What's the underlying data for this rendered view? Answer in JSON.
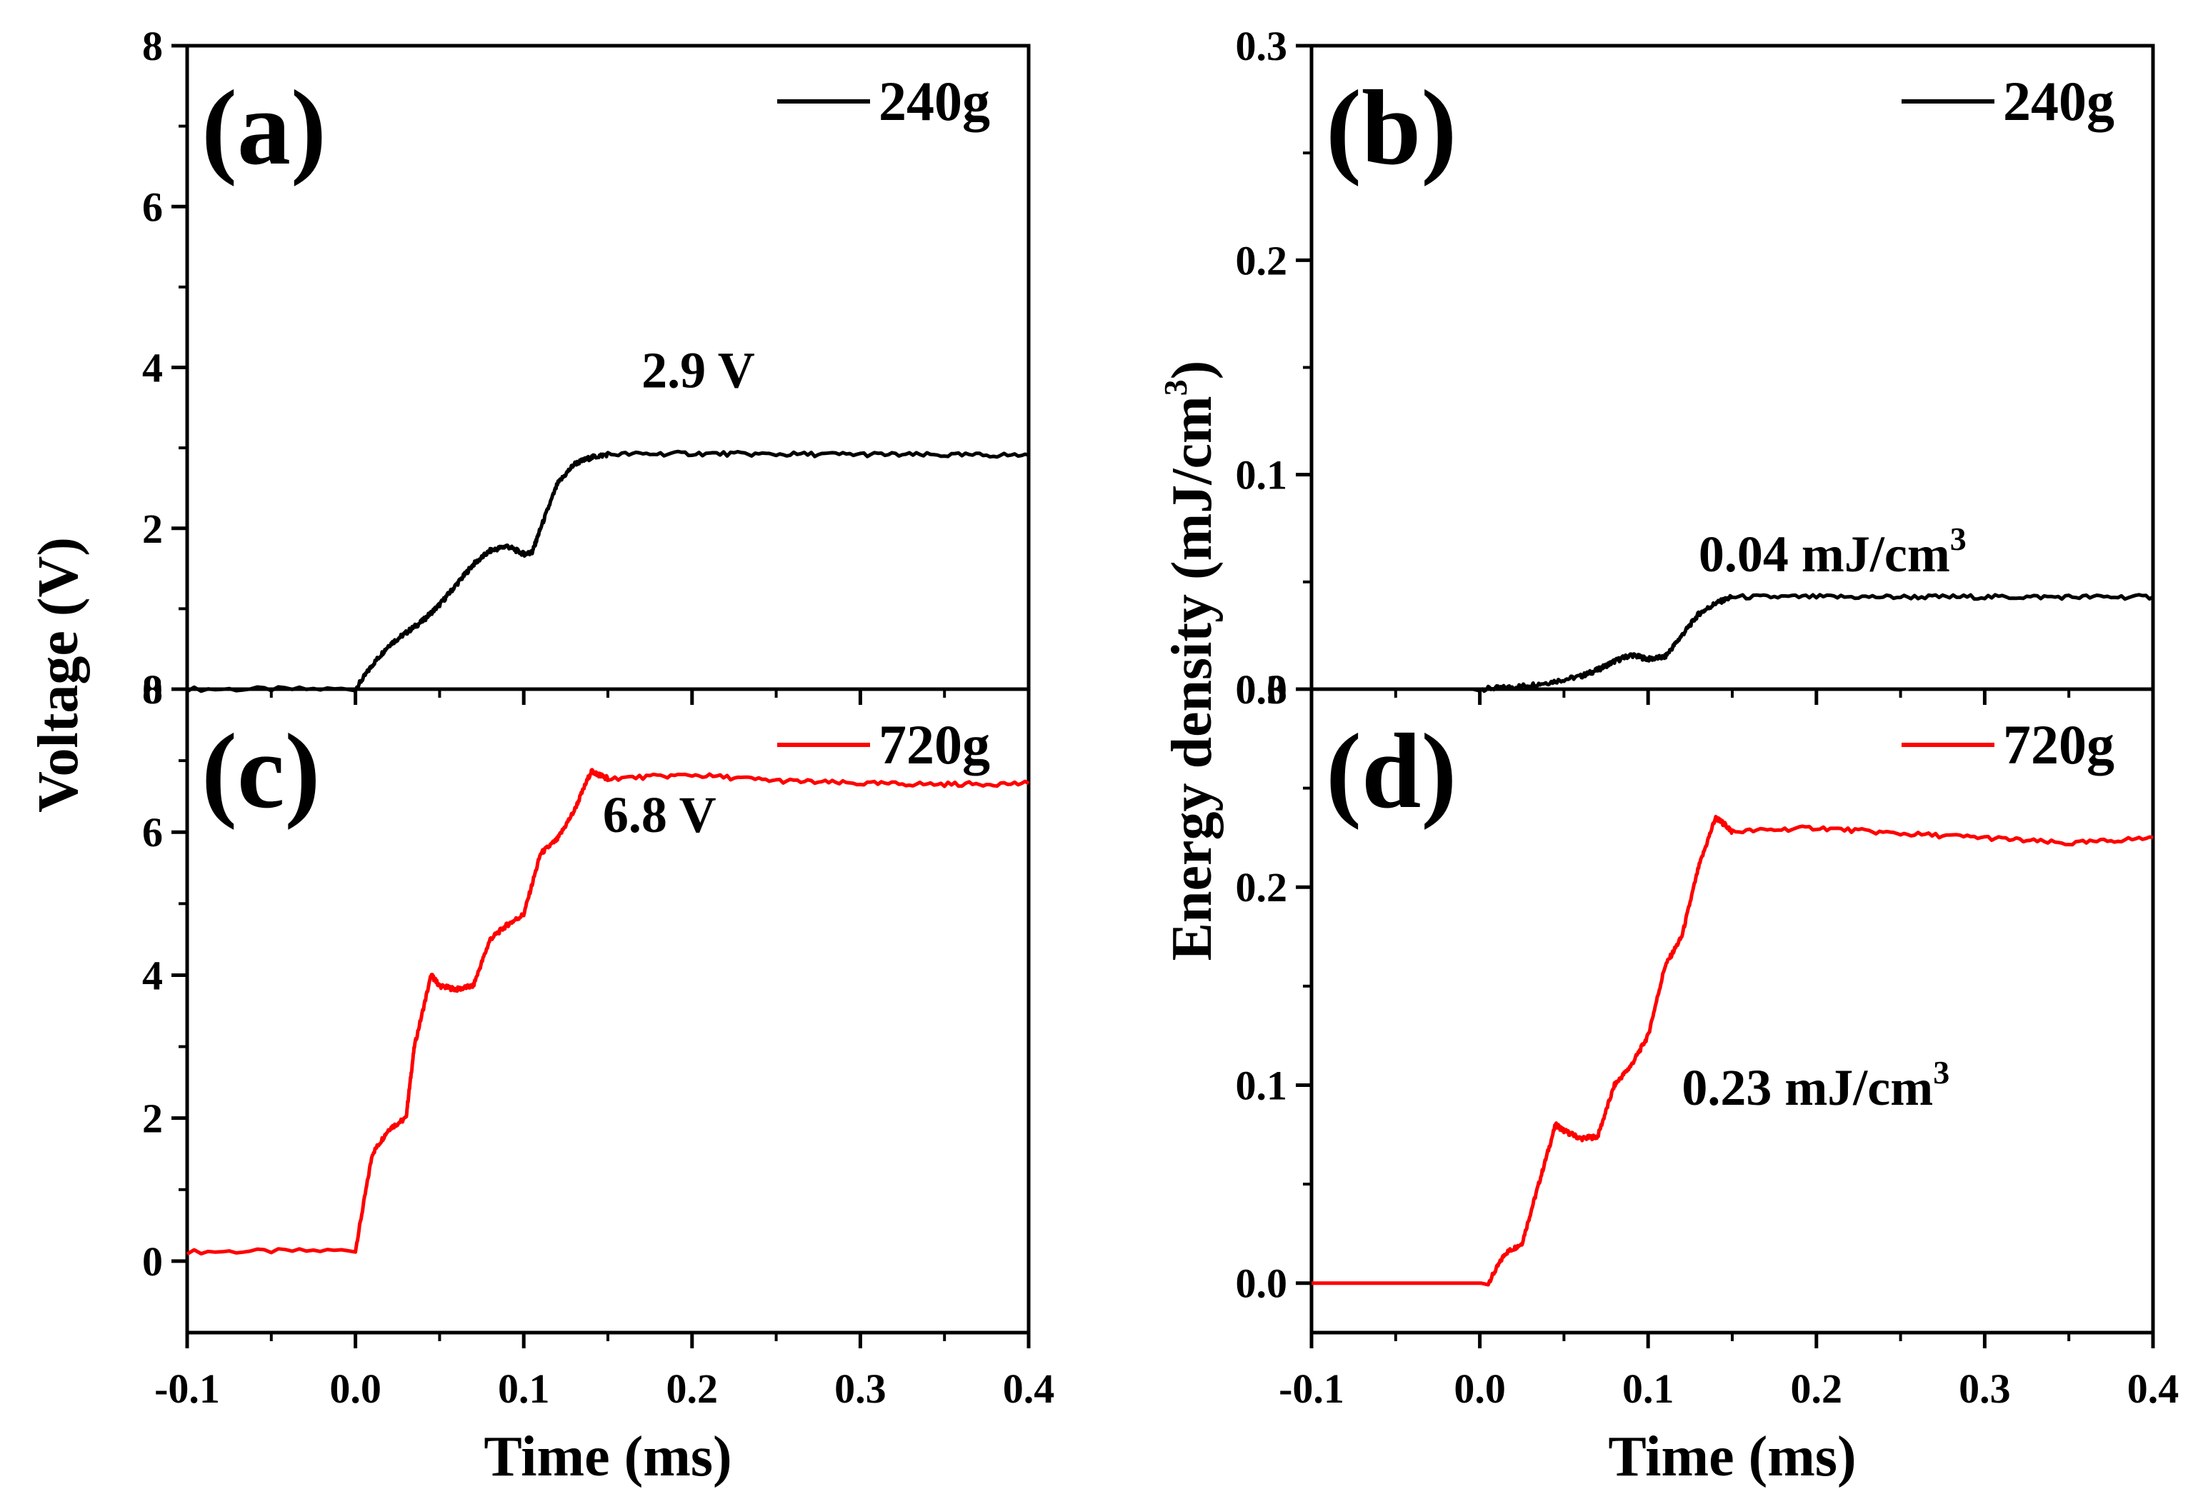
{
  "chart_data": [
    {
      "panel": "a",
      "type": "line",
      "panel_label": "(a)",
      "xlabel": "",
      "ylabel": "Voltage (V)",
      "xlim": [
        -0.1,
        0.4
      ],
      "ylim": [
        0,
        8
      ],
      "xticks": [],
      "yticks": [
        "0",
        "2",
        "4",
        "6",
        "8"
      ],
      "legend": "240g",
      "legend_position": "top-right",
      "color": "#000000",
      "annotation": {
        "text": "2.9 V",
        "x": 0.17,
        "y": 3.75
      },
      "series": [
        {
          "name": "240g",
          "x": [
            -0.1,
            0.0,
            0.01,
            0.02,
            0.03,
            0.04,
            0.05,
            0.06,
            0.07,
            0.08,
            0.09,
            0.1,
            0.105,
            0.11,
            0.12,
            0.13,
            0.14,
            0.15,
            0.2,
            0.25,
            0.3,
            0.35,
            0.4
          ],
          "y": [
            0.0,
            0.0,
            0.3,
            0.55,
            0.7,
            0.85,
            1.05,
            1.3,
            1.55,
            1.72,
            1.78,
            1.68,
            1.7,
            2.0,
            2.55,
            2.8,
            2.88,
            2.92,
            2.93,
            2.92,
            2.92,
            2.91,
            2.91
          ]
        }
      ]
    },
    {
      "panel": "b",
      "type": "line",
      "panel_label": "(b)",
      "xlabel": "",
      "ylabel": "",
      "xlim": [
        -0.1,
        0.4
      ],
      "ylim": [
        0,
        0.3
      ],
      "xticks": [],
      "yticks": [
        "0.0",
        "0.1",
        "0.2",
        "0.3"
      ],
      "legend": "240g",
      "legend_position": "top-right",
      "color": "#000000",
      "annotation": {
        "text": "0.04 mJ/cm",
        "sup": "3",
        "x": 0.13,
        "y": 0.055
      },
      "series": [
        {
          "name": "240g",
          "x": [
            -0.1,
            0.0,
            0.02,
            0.04,
            0.06,
            0.07,
            0.08,
            0.09,
            0.1,
            0.11,
            0.12,
            0.13,
            0.14,
            0.15,
            0.2,
            0.25,
            0.3,
            0.35,
            0.4
          ],
          "y": [
            0.0,
            0.0,
            0.001,
            0.003,
            0.006,
            0.009,
            0.013,
            0.016,
            0.014,
            0.015,
            0.025,
            0.035,
            0.04,
            0.043,
            0.043,
            0.043,
            0.043,
            0.043,
            0.043
          ]
        }
      ]
    },
    {
      "panel": "c",
      "type": "line",
      "panel_label": "(c)",
      "xlabel": "Time (ms)",
      "ylabel": "",
      "xlim": [
        -0.1,
        0.4
      ],
      "ylim": [
        -1,
        8
      ],
      "xticks": [
        "-0.1",
        "0.0",
        "0.1",
        "0.2",
        "0.3",
        "0.4"
      ],
      "yticks": [
        "0",
        "2",
        "4",
        "6",
        "8"
      ],
      "legend": "720g",
      "legend_position": "top-right",
      "color": "#ff0000",
      "annotation": {
        "text": "6.8 V",
        "x": 0.147,
        "y": 6.0
      },
      "series": [
        {
          "name": "720g",
          "x": [
            -0.1,
            0.0,
            0.01,
            0.02,
            0.03,
            0.035,
            0.045,
            0.05,
            0.06,
            0.07,
            0.08,
            0.09,
            0.1,
            0.11,
            0.12,
            0.13,
            0.14,
            0.145,
            0.15,
            0.2,
            0.25,
            0.3,
            0.35,
            0.4
          ],
          "y": [
            0.13,
            0.15,
            1.5,
            1.85,
            2.0,
            3.0,
            4.0,
            3.85,
            3.8,
            3.85,
            4.5,
            4.7,
            4.85,
            5.7,
            5.9,
            6.3,
            6.85,
            6.8,
            6.75,
            6.8,
            6.72,
            6.68,
            6.67,
            6.68
          ]
        }
      ]
    },
    {
      "panel": "d",
      "type": "line",
      "panel_label": "(d)",
      "xlabel": "Time (ms)",
      "ylabel": "",
      "xlim": [
        -0.1,
        0.4
      ],
      "ylim": [
        -0.025,
        0.3
      ],
      "xticks": [
        "-0.1",
        "0.0",
        "0.1",
        "0.2",
        "0.3",
        "0.4"
      ],
      "yticks": [
        "0.0",
        "0.1",
        "0.2",
        "0.3"
      ],
      "legend": "720g",
      "legend_position": "top-right",
      "color": "#ff0000",
      "annotation": {
        "text": "0.23 mJ/cm",
        "sup": "3",
        "x": 0.12,
        "y": 0.09
      },
      "series": [
        {
          "name": "720g",
          "x": [
            -0.1,
            0.005,
            0.015,
            0.025,
            0.035,
            0.045,
            0.05,
            0.06,
            0.07,
            0.08,
            0.09,
            0.1,
            0.11,
            0.12,
            0.13,
            0.14,
            0.145,
            0.15,
            0.2,
            0.25,
            0.3,
            0.35,
            0.4
          ],
          "y": [
            0.0,
            0.0,
            0.015,
            0.02,
            0.05,
            0.08,
            0.077,
            0.073,
            0.074,
            0.1,
            0.11,
            0.125,
            0.16,
            0.175,
            0.21,
            0.235,
            0.232,
            0.228,
            0.23,
            0.227,
            0.225,
            0.222,
            0.225
          ]
        }
      ]
    }
  ],
  "shared_ylabel_left": "Voltage (V)",
  "shared_ylabel_right": "Energy density (mJ/cm",
  "shared_ylabel_right_sup": "3",
  "shared_ylabel_right_close": ")"
}
